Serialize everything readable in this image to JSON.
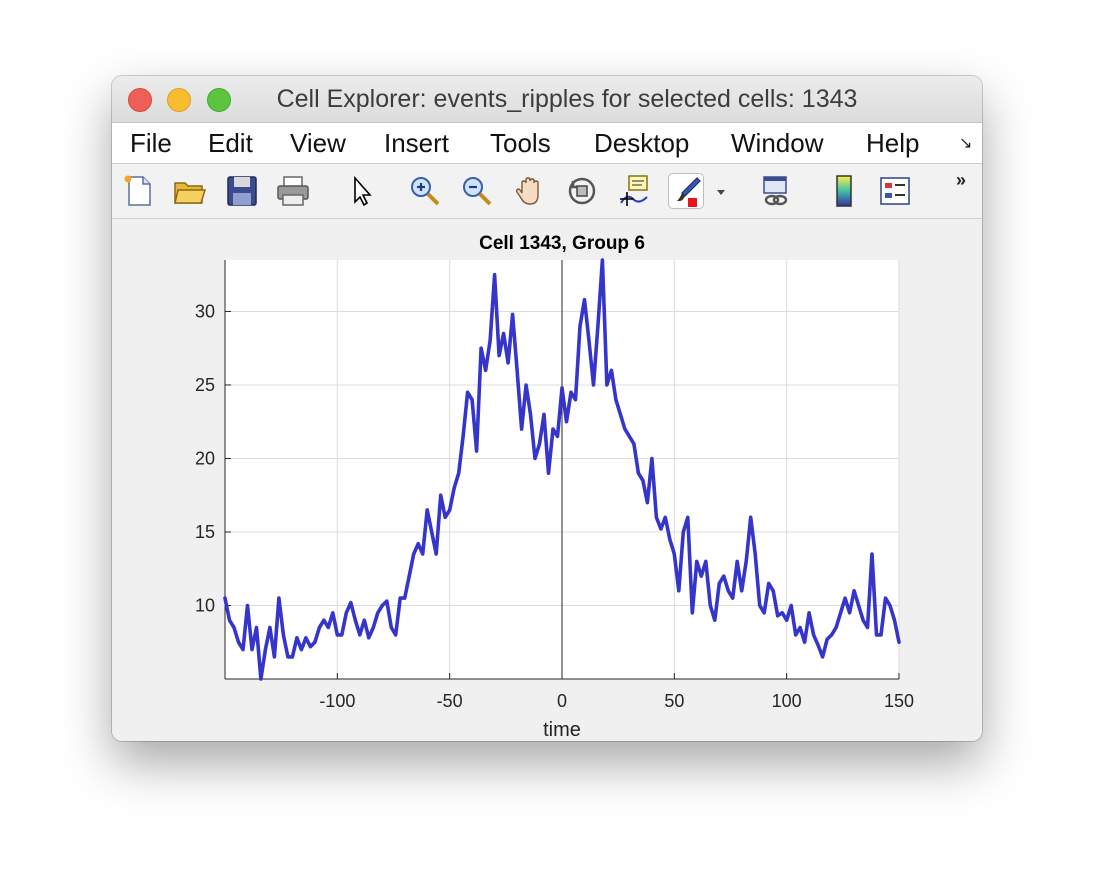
{
  "window": {
    "title": "Cell Explorer: events_ripples for selected cells: 1343"
  },
  "menu": {
    "items": [
      "File",
      "Edit",
      "View",
      "Insert",
      "Tools",
      "Desktop",
      "Window",
      "Help"
    ]
  },
  "toolbar": {
    "tools": [
      "new-file-icon",
      "open-folder-icon",
      "save-icon",
      "print-icon",
      "pointer-icon",
      "zoom-in-icon",
      "zoom-out-icon",
      "pan-hand-icon",
      "rotate-3d-icon",
      "data-cursor-icon",
      "brush-icon",
      "link-plot-icon",
      "colorbar-icon",
      "legend-icon"
    ],
    "overflow": "»",
    "corner": "↘"
  },
  "colors": {
    "line": "#3535cc",
    "grid": "#dcdcdc",
    "axis_bg": "#ffffff",
    "figure_bg": "#f0f0f0"
  },
  "chart_data": {
    "type": "line",
    "title": "Cell 1343, Group 6",
    "xlabel": "time",
    "ylabel": "",
    "xlim": [
      -150,
      150
    ],
    "ylim": [
      5,
      33.5
    ],
    "xticks": [
      -100,
      -50,
      0,
      50,
      100,
      150
    ],
    "yticks": [
      10,
      15,
      20,
      25,
      30
    ],
    "grid": true,
    "vline_x": 0,
    "series": [
      {
        "x": [
          -150,
          -148,
          -146,
          -144,
          -142,
          -140,
          -138,
          -136,
          -134,
          -132,
          -130,
          -128,
          -126,
          -124,
          -122,
          -120,
          -118,
          -116,
          -114,
          -112,
          -110,
          -108,
          -106,
          -104,
          -102,
          -100,
          -98,
          -96,
          -94,
          -92,
          -90,
          -88,
          -86,
          -84,
          -82,
          -80,
          -78,
          -76,
          -74,
          -72,
          -70,
          -68,
          -66,
          -64,
          -62,
          -60,
          -58,
          -56,
          -54,
          -52,
          -50,
          -48,
          -46,
          -44,
          -42,
          -40,
          -38,
          -36,
          -34,
          -32,
          -30,
          -28,
          -26,
          -24,
          -22,
          -20,
          -18,
          -16,
          -14,
          -12,
          -10,
          -8,
          -6,
          -4,
          -2,
          0,
          2,
          4,
          6,
          8,
          10,
          12,
          14,
          16,
          18,
          20,
          22,
          24,
          26,
          28,
          30,
          32,
          34,
          36,
          38,
          40,
          42,
          44,
          46,
          48,
          50,
          52,
          54,
          56,
          58,
          60,
          62,
          64,
          66,
          68,
          70,
          72,
          74,
          76,
          78,
          80,
          82,
          84,
          86,
          88,
          90,
          92,
          94,
          96,
          98,
          100,
          102,
          104,
          106,
          108,
          110,
          112,
          114,
          116,
          118,
          120,
          122,
          124,
          126,
          128,
          130,
          132,
          134,
          136,
          138,
          140,
          142,
          144,
          146,
          148,
          150
        ],
        "values": [
          10.5,
          9.0,
          8.5,
          7.5,
          7.0,
          10.0,
          7.0,
          8.5,
          5.0,
          7.0,
          8.5,
          6.5,
          10.5,
          8.0,
          6.5,
          6.5,
          7.8,
          7.0,
          7.8,
          7.2,
          7.5,
          8.5,
          9.0,
          8.5,
          9.5,
          8.0,
          8.0,
          9.5,
          10.2,
          9.0,
          8.0,
          9.0,
          7.8,
          8.5,
          9.5,
          10.0,
          10.3,
          8.5,
          8.0,
          10.5,
          10.5,
          12.0,
          13.5,
          14.2,
          13.5,
          16.5,
          15.0,
          13.5,
          17.5,
          16.0,
          16.5,
          18.0,
          19.0,
          21.5,
          24.5,
          24.0,
          20.5,
          27.5,
          26.0,
          28.0,
          32.5,
          27.0,
          28.5,
          26.5,
          29.8,
          26.0,
          22.0,
          25.0,
          23.0,
          20.0,
          21.0,
          23.0,
          19.0,
          22.0,
          21.5,
          24.8,
          22.5,
          24.5,
          24.0,
          29.0,
          30.8,
          28.0,
          25.0,
          29.0,
          33.5,
          25.0,
          26.0,
          24.0,
          23.0,
          22.0,
          21.5,
          21.0,
          19.0,
          18.5,
          17.0,
          20.0,
          16.0,
          15.2,
          16.0,
          14.5,
          13.5,
          11.0,
          15.0,
          16.0,
          9.5,
          13.0,
          12.0,
          13.0,
          10.0,
          9.0,
          11.5,
          12.0,
          11.0,
          10.5,
          13.0,
          11.0,
          13.0,
          16.0,
          13.5,
          10.0,
          9.5,
          11.5,
          11.0,
          9.3,
          9.5,
          9.0,
          10.0,
          8.0,
          8.5,
          7.5,
          9.5,
          8.0,
          7.3,
          6.5,
          7.7,
          8.0,
          8.5,
          9.5,
          10.5,
          9.5,
          11.0,
          10.0,
          9.0,
          8.5,
          13.5,
          8.0,
          8.0,
          10.5,
          10.0,
          9.0,
          7.5
        ]
      }
    ]
  }
}
